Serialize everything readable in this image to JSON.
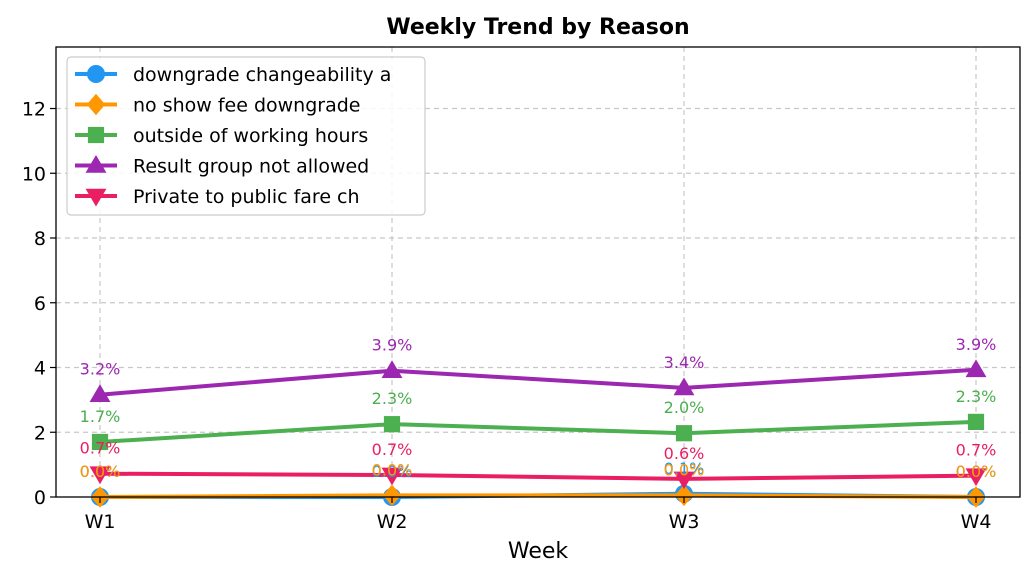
{
  "chart_data": {
    "type": "line",
    "title": "Weekly Trend by Reason",
    "xlabel": "Week",
    "ylabel": "",
    "categories": [
      "W1",
      "W2",
      "W3",
      "W4"
    ],
    "ylim": [
      0,
      13.9
    ],
    "yticks": [
      0,
      2,
      4,
      6,
      8,
      10,
      12
    ],
    "grid": true,
    "legend_position": "top-left",
    "series": [
      {
        "name": "downgrade changeability a",
        "color": "#2196F3",
        "marker": "circle",
        "values": [
          0.0,
          0.0,
          0.1,
          0.0
        ],
        "labels": [
          "0.0%",
          "0.0%",
          "0.1%",
          "0.0%"
        ]
      },
      {
        "name": "no show fee downgrade",
        "color": "#FF9800",
        "marker": "diamond",
        "values": [
          0.0,
          0.05,
          0.05,
          0.0
        ],
        "labels": [
          "0.0%",
          "0.0%",
          "0.0%",
          "0.0%"
        ]
      },
      {
        "name": "outside of working hours",
        "color": "#4CAF50",
        "marker": "square",
        "values": [
          1.7,
          2.25,
          1.97,
          2.32
        ],
        "labels": [
          "1.7%",
          "2.3%",
          "2.0%",
          "2.3%"
        ]
      },
      {
        "name": "Result group not allowed",
        "color": "#9C27B0",
        "marker": "triangle-up",
        "values": [
          3.16,
          3.9,
          3.37,
          3.93
        ],
        "labels": [
          "3.2%",
          "3.9%",
          "3.4%",
          "3.9%"
        ]
      },
      {
        "name": "Private to public fare ch",
        "color": "#E91E63",
        "marker": "triangle-down",
        "values": [
          0.72,
          0.68,
          0.56,
          0.66
        ],
        "labels": [
          "0.7%",
          "0.7%",
          "0.6%",
          "0.7%"
        ]
      }
    ]
  }
}
